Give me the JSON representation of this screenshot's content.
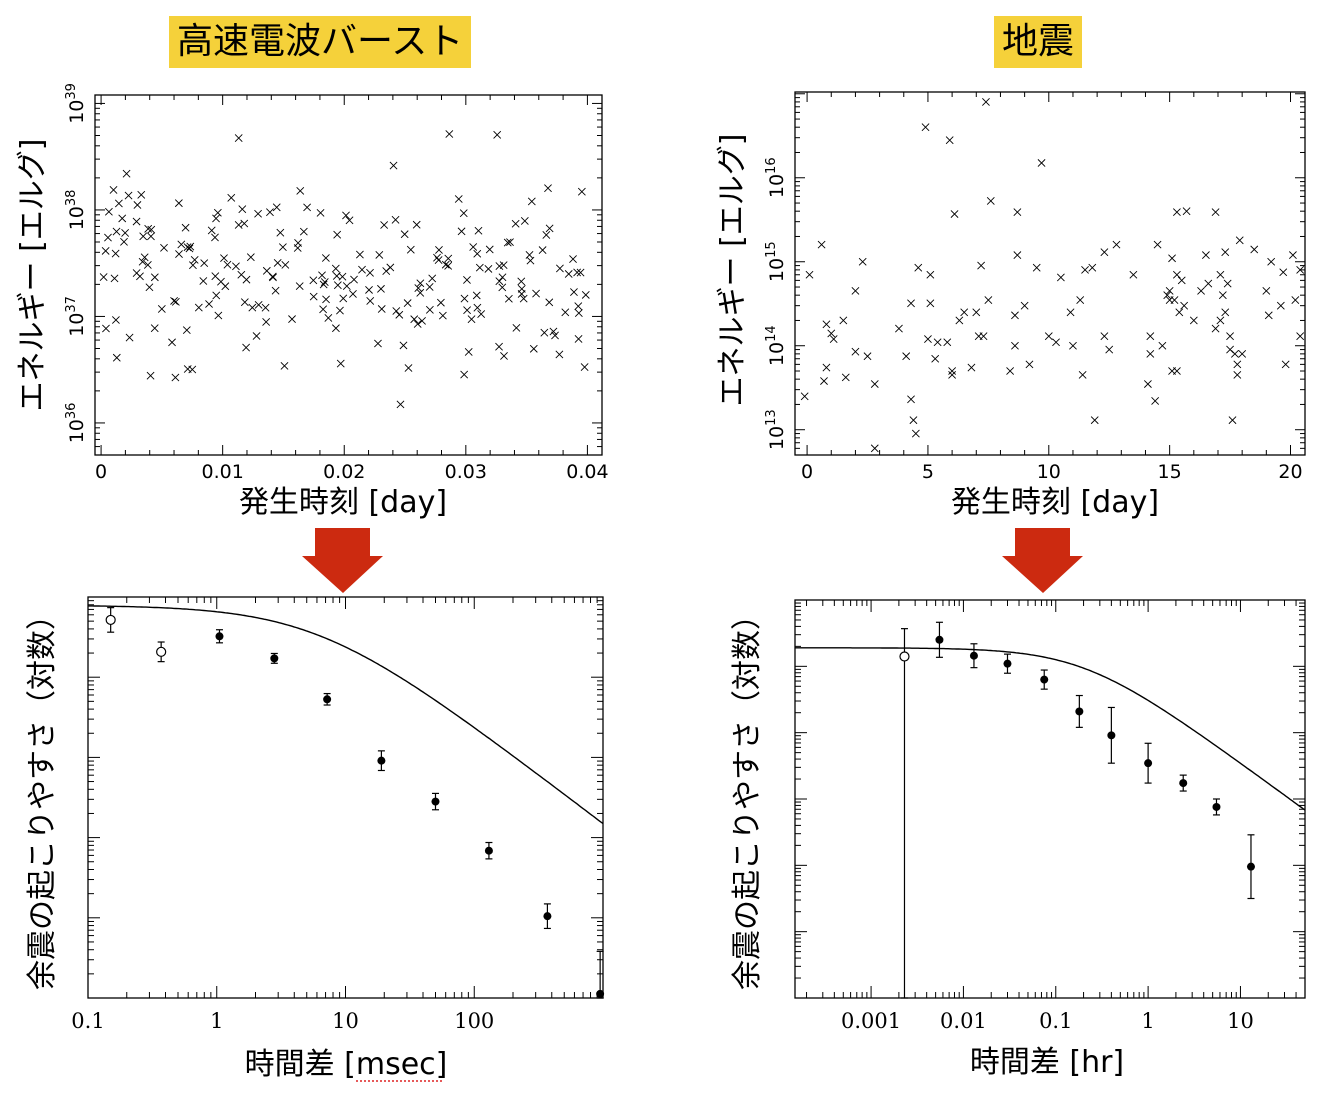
{
  "headers": {
    "left": "高速電波バースト",
    "right": "地震"
  },
  "colors": {
    "header_bg": "#f5d13a",
    "arrow": "#cc2a10",
    "marks": "#000000"
  },
  "chart_data": [
    {
      "id": "frb_energy",
      "type": "scatter",
      "title": "",
      "xlabel": "発生時刻 [day]",
      "ylabel": "エネルギー [エルグ]",
      "x_ticks": [
        "0",
        "0.01",
        "0.02",
        "0.03",
        "0.04"
      ],
      "x_tick_values": [
        0,
        0.01,
        0.02,
        0.03,
        0.04
      ],
      "xlim": [
        -0.0005,
        0.0412
      ],
      "yscale": "log",
      "ylim": [
        5e+35,
        1.2e+39
      ],
      "y_ticks": [
        {
          "base": "10",
          "exp": "36",
          "value": 1e+36
        },
        {
          "base": "10",
          "exp": "37",
          "value": 1e+37
        },
        {
          "base": "10",
          "exp": "38",
          "value": 1e+38
        },
        {
          "base": "10",
          "exp": "39",
          "value": 1e+39
        }
      ],
      "marker": "x",
      "seed": 7,
      "n_points": 230
    },
    {
      "id": "eq_energy",
      "type": "scatter",
      "title": "",
      "xlabel": "発生時刻 [day]",
      "ylabel": "エネルギー [エルグ]",
      "x_ticks": [
        "0",
        "5",
        "10",
        "15",
        "20"
      ],
      "x_tick_values": [
        0,
        5,
        10,
        15,
        20
      ],
      "xlim": [
        -0.5,
        20.6
      ],
      "yscale": "log",
      "ylim": [
        5000000000000.0,
        1.05e+17
      ],
      "y_ticks": [
        {
          "base": "10",
          "exp": "13",
          "value": 10000000000000.0
        },
        {
          "base": "10",
          "exp": "14",
          "value": 100000000000000.0
        },
        {
          "base": "10",
          "exp": "15",
          "value": 1000000000000000.0
        },
        {
          "base": "10",
          "exp": "16",
          "value": 1e+16
        }
      ],
      "marker": "x",
      "points": [
        [
          -0.1,
          25000000000000.0
        ],
        [
          0.1,
          700000000000000.0
        ],
        [
          0.6,
          1600000000000000.0
        ],
        [
          0.7,
          38000000000000.0
        ],
        [
          0.8,
          55000000000000.0
        ],
        [
          0.8,
          180000000000000.0
        ],
        [
          1.0,
          140000000000000.0
        ],
        [
          1.1,
          120000000000000.0
        ],
        [
          1.5,
          200000000000000.0
        ],
        [
          1.6,
          42000000000000.0
        ],
        [
          2.0,
          450000000000000.0
        ],
        [
          2.0,
          85000000000000.0
        ],
        [
          2.3,
          1000000000000000.0
        ],
        [
          2.5,
          75000000000000.0
        ],
        [
          2.8,
          35000000000000.0
        ],
        [
          2.8,
          6000000000000.0
        ],
        [
          3.8,
          160000000000000.0
        ],
        [
          4.1,
          75000000000000.0
        ],
        [
          4.3,
          320000000000000.0
        ],
        [
          4.3,
          23000000000000.0
        ],
        [
          4.4,
          13000000000000.0
        ],
        [
          4.5,
          9000000000000.0
        ],
        [
          4.6,
          850000000000000.0
        ],
        [
          4.9,
          4e+16
        ],
        [
          5.0,
          120000000000000.0
        ],
        [
          5.1,
          320000000000000.0
        ],
        [
          5.1,
          700000000000000.0
        ],
        [
          5.3,
          70000000000000.0
        ],
        [
          5.4,
          110000000000000.0
        ],
        [
          5.8,
          110000000000000.0
        ],
        [
          5.9,
          2.8e+16
        ],
        [
          6.0,
          50000000000000.0
        ],
        [
          6.0,
          45000000000000.0
        ],
        [
          6.1,
          3700000000000000.0
        ],
        [
          6.3,
          200000000000000.0
        ],
        [
          6.5,
          250000000000000.0
        ],
        [
          6.8,
          55000000000000.0
        ],
        [
          7.0,
          250000000000000.0
        ],
        [
          7.1,
          130000000000000.0
        ],
        [
          7.2,
          900000000000000.0
        ],
        [
          7.3,
          130000000000000.0
        ],
        [
          7.4,
          8e+16
        ],
        [
          7.5,
          350000000000000.0
        ],
        [
          7.6,
          5300000000000000.0
        ],
        [
          8.4,
          50000000000000.0
        ],
        [
          8.6,
          230000000000000.0
        ],
        [
          8.6,
          100000000000000.0
        ],
        [
          8.7,
          3900000000000000.0
        ],
        [
          8.7,
          1200000000000000.0
        ],
        [
          9.0,
          300000000000000.0
        ],
        [
          9.2,
          60000000000000.0
        ],
        [
          9.5,
          850000000000000.0
        ],
        [
          9.7,
          1.5e+16
        ],
        [
          10.0,
          130000000000000.0
        ],
        [
          10.3,
          110000000000000.0
        ],
        [
          10.5,
          650000000000000.0
        ],
        [
          10.9,
          250000000000000.0
        ],
        [
          11.0,
          100000000000000.0
        ],
        [
          11.3,
          350000000000000.0
        ],
        [
          11.4,
          45000000000000.0
        ],
        [
          11.5,
          800000000000000.0
        ],
        [
          11.8,
          850000000000000.0
        ],
        [
          11.9,
          13000000000000.0
        ],
        [
          12.3,
          1300000000000000.0
        ],
        [
          12.3,
          130000000000000.0
        ],
        [
          12.5,
          90000000000000.0
        ],
        [
          12.8,
          1600000000000000.0
        ],
        [
          13.5,
          700000000000000.0
        ],
        [
          14.1,
          35000000000000.0
        ],
        [
          14.2,
          130000000000000.0
        ],
        [
          14.2,
          80000000000000.0
        ],
        [
          14.4,
          22000000000000.0
        ],
        [
          14.5,
          1600000000000000.0
        ],
        [
          14.7,
          100000000000000.0
        ],
        [
          14.9,
          400000000000000.0
        ],
        [
          15.1,
          1100000000000000.0
        ],
        [
          15.3,
          3900000000000000.0
        ],
        [
          15.0,
          450000000000000.0
        ],
        [
          15.2,
          350000000000000.0
        ],
        [
          15.3,
          700000000000000.0
        ],
        [
          15.5,
          600000000000000.0
        ],
        [
          15.6,
          300000000000000.0
        ],
        [
          15.1,
          50000000000000.0
        ],
        [
          15.3,
          50000000000000.0
        ],
        [
          15.0,
          350000000000000.0
        ],
        [
          15.4,
          250000000000000.0
        ],
        [
          15.7,
          4000000000000000.0
        ],
        [
          16.0,
          200000000000000.0
        ],
        [
          16.3,
          450000000000000.0
        ],
        [
          16.5,
          1200000000000000.0
        ],
        [
          16.6,
          550000000000000.0
        ],
        [
          16.9,
          160000000000000.0
        ],
        [
          16.9,
          3900000000000000.0
        ],
        [
          17.1,
          200000000000000.0
        ],
        [
          17.1,
          700000000000000.0
        ],
        [
          17.2,
          400000000000000.0
        ],
        [
          17.3,
          1300000000000000.0
        ],
        [
          17.3,
          250000000000000.0
        ],
        [
          17.4,
          550000000000000.0
        ],
        [
          17.5,
          130000000000000.0
        ],
        [
          17.5,
          90000000000000.0
        ],
        [
          17.6,
          13000000000000.0
        ],
        [
          17.7,
          80000000000000.0
        ],
        [
          17.8,
          60000000000000.0
        ],
        [
          17.9,
          1800000000000000.0
        ],
        [
          17.8,
          45000000000000.0
        ],
        [
          18.0,
          80000000000000.0
        ],
        [
          18.5,
          1400000000000000.0
        ],
        [
          19.0,
          450000000000000.0
        ],
        [
          19.1,
          230000000000000.0
        ],
        [
          19.2,
          1000000000000000.0
        ],
        [
          19.6,
          300000000000000.0
        ],
        [
          19.7,
          750000000000000.0
        ],
        [
          19.8,
          60000000000000.0
        ],
        [
          20.1,
          1200000000000000.0
        ],
        [
          20.2,
          350000000000000.0
        ],
        [
          20.4,
          130000000000000.0
        ],
        [
          20.4,
          800000000000000.0
        ]
      ]
    },
    {
      "id": "frb_aftershock",
      "type": "line",
      "title": "",
      "xlabel": "時間差 [msec]",
      "ylabel": "余震の起こりやすさ（対数）",
      "xscale": "log",
      "xlim": [
        0.1,
        1000
      ],
      "x_ticks": [
        "0.1",
        "1",
        "10",
        "100"
      ],
      "x_tick_values": [
        0.1,
        1,
        10,
        100
      ],
      "yscale": "log",
      "ylim": [
        -4.9,
        0.0
      ],
      "y_minor_decades": 5,
      "model": {
        "y0": -0.1,
        "tau": 6,
        "slope": 1.2
      },
      "series": [
        {
          "marker": "open-circle",
          "points": [
            [
              0.15,
              -0.28,
              0.15
            ],
            [
              0.37,
              -0.67,
              0.12
            ]
          ]
        },
        {
          "marker": "filled-circle",
          "points": [
            [
              1.05,
              -0.48,
              0.08
            ],
            [
              2.8,
              -0.75,
              0.06
            ],
            [
              7.2,
              -1.25,
              0.07
            ],
            [
              19,
              -2.0,
              0.12
            ],
            [
              50,
              -2.5,
              0.1
            ],
            [
              130,
              -3.1,
              0.1
            ],
            [
              370,
              -3.9,
              0.15
            ],
            [
              950,
              -4.85,
              0.52
            ]
          ]
        }
      ]
    },
    {
      "id": "eq_aftershock",
      "type": "line",
      "title": "",
      "xlabel": "時間差 [hr]",
      "ylabel": "余震の起こりやすさ（対数）",
      "xscale": "log",
      "xlim": [
        0.00015,
        50
      ],
      "x_ticks": [
        "0.001",
        "0.01",
        "0.1",
        "1",
        "10"
      ],
      "x_tick_values": [
        0.001,
        0.01,
        0.1,
        1,
        10
      ],
      "yscale": "log",
      "ylim": [
        -5.0,
        0.0
      ],
      "y_minor_decades": 6,
      "model": {
        "y0": -0.6,
        "tau": 0.2,
        "slope": 0.85
      },
      "series": [
        {
          "marker": "open-circle",
          "points": [
            [
              0.0023,
              -0.71,
              5.0,
              0.35
            ]
          ]
        },
        {
          "marker": "filled-circle",
          "points": [
            [
              0.0055,
              -0.5,
              0.22
            ],
            [
              0.013,
              -0.7,
              0.15
            ],
            [
              0.03,
              -0.8,
              0.12
            ],
            [
              0.075,
              -1.0,
              0.12
            ],
            [
              0.18,
              -1.4,
              0.2
            ],
            [
              0.4,
              -1.7,
              0.35
            ],
            [
              1.0,
              -2.05,
              0.25
            ],
            [
              2.4,
              -2.3,
              0.1
            ],
            [
              5.5,
              -2.6,
              0.1
            ],
            [
              13,
              -3.35,
              0.4
            ]
          ]
        }
      ]
    }
  ]
}
